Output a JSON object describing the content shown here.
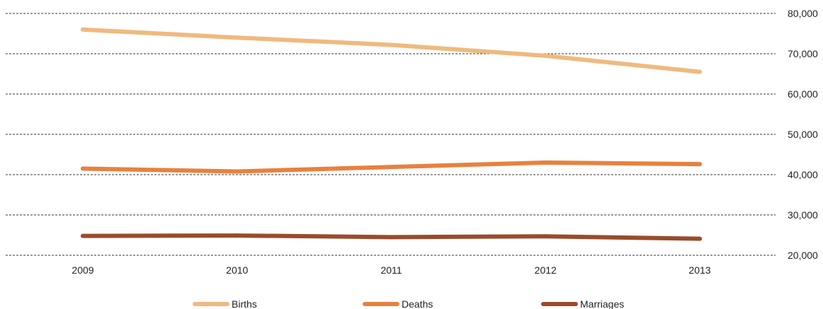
{
  "chart_data": {
    "type": "line",
    "title": "",
    "xlabel": "",
    "ylabel": "",
    "x": [
      "2009",
      "2010",
      "2011",
      "2012",
      "2013"
    ],
    "ylim": [
      20000,
      80000
    ],
    "y_ticks": [
      "20,000",
      "30,000",
      "40,000",
      "50,000",
      "60,000",
      "70,000",
      "80,000"
    ],
    "y_tick_values": [
      20000,
      30000,
      40000,
      50000,
      60000,
      70000,
      80000
    ],
    "grid": true,
    "y_axis_side": "right",
    "legend_placement": "bottom",
    "series": [
      {
        "name": "Births",
        "color": "#F0B97F",
        "values": [
          76000,
          74000,
          72200,
          69500,
          65500
        ]
      },
      {
        "name": "Deaths",
        "color": "#E8813E",
        "values": [
          41500,
          40800,
          41900,
          43000,
          42600
        ]
      },
      {
        "name": "Marriages",
        "color": "#9A4B2A",
        "values": [
          24800,
          24900,
          24500,
          24700,
          24100
        ]
      }
    ]
  }
}
